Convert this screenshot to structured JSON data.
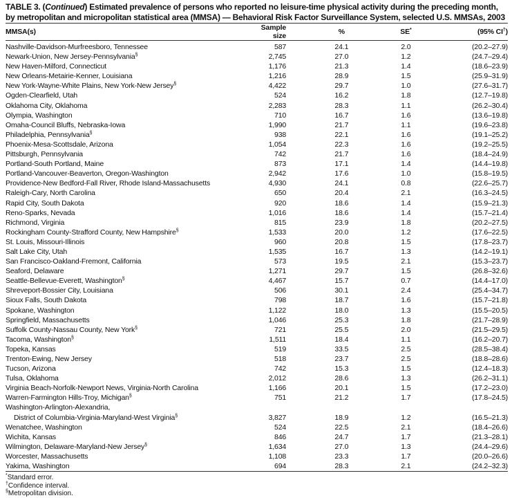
{
  "title": {
    "prefix": "TABLE 3. (",
    "continued": "Continued",
    "text": ") Estimated prevalence of persons who reported no leisure-time physical activity during the preceding month, by metropolitan and micropolitan statistical area (MMSA) — Behavioral Risk Factor Surveillance System, selected U.S. MMSAs, 2003"
  },
  "columns": {
    "mmsa": "MMSA(s)",
    "sample": "Sample size",
    "pct": "%",
    "se": "SE",
    "se_mark": "*",
    "ci": "(95% CI",
    "ci_mark": "†",
    "ci_close": ")"
  },
  "rows": [
    {
      "name": "Nashville-Davidson-Murfreesboro, Tennessee",
      "sample": "587",
      "pct": "24.1",
      "se": "2.0",
      "ci": "(20.2–27.9)"
    },
    {
      "name": "Newark-Union, New Jersey-Pennsylvania",
      "mark": "§",
      "sample": "2,745",
      "pct": "27.0",
      "se": "1.2",
      "ci": "(24.7–29.4)"
    },
    {
      "name": "New Haven-Milford, Connecticut",
      "sample": "1,176",
      "pct": "21.3",
      "se": "1.4",
      "ci": "(18.6–23.9)"
    },
    {
      "name": "New Orleans-Metairie-Kenner, Louisiana",
      "sample": "1,216",
      "pct": "28.9",
      "se": "1.5",
      "ci": "(25.9–31.9)"
    },
    {
      "name": "New York-Wayne-White Plains, New York-New Jersey",
      "mark": "§",
      "sample": "4,422",
      "pct": "29.7",
      "se": "1.0",
      "ci": "(27.6–31.7)"
    },
    {
      "name": "Ogden-Clearfield, Utah",
      "sample": "524",
      "pct": "16.2",
      "se": "1.8",
      "ci": "(12.7–19.8)"
    },
    {
      "name": "Oklahoma City, Oklahoma",
      "sample": "2,283",
      "pct": "28.3",
      "se": "1.1",
      "ci": "(26.2–30.4)"
    },
    {
      "name": "Olympia, Washington",
      "sample": "710",
      "pct": "16.7",
      "se": "1.6",
      "ci": "(13.6–19.8)"
    },
    {
      "name": "Omaha-Council Bluffs, Nebraska-Iowa",
      "sample": "1,990",
      "pct": "21.7",
      "se": "1.1",
      "ci": "(19.6–23.8)"
    },
    {
      "name": "Philadelphia, Pennsylvania",
      "mark": "§",
      "sample": "938",
      "pct": "22.1",
      "se": "1.6",
      "ci": "(19.1–25.2)"
    },
    {
      "name": "Phoenix-Mesa-Scottsdale, Arizona",
      "sample": "1,054",
      "pct": "22.3",
      "se": "1.6",
      "ci": "(19.2–25.5)"
    },
    {
      "name": "Pittsburgh, Pennsylvania",
      "sample": "742",
      "pct": "21.7",
      "se": "1.6",
      "ci": "(18.4–24.9)"
    },
    {
      "name": "Portland-South Portland, Maine",
      "sample": "873",
      "pct": "17.1",
      "se": "1.4",
      "ci": "(14.4–19.8)"
    },
    {
      "name": "Portland-Vancouver-Beaverton, Oregon-Washington",
      "sample": "2,942",
      "pct": "17.6",
      "se": "1.0",
      "ci": "(15.8–19.5)"
    },
    {
      "name": "Providence-New Bedford-Fall River, Rhode Island-Massachusetts",
      "sample": "4,930",
      "pct": "24.1",
      "se": "0.8",
      "ci": "(22.6–25.7)"
    },
    {
      "name": "Raleigh-Cary, North Carolina",
      "sample": "650",
      "pct": "20.4",
      "se": "2.1",
      "ci": "(16.3–24.5)"
    },
    {
      "name": "Rapid City, South Dakota",
      "sample": "920",
      "pct": "18.6",
      "se": "1.4",
      "ci": "(15.9–21.3)"
    },
    {
      "name": "Reno-Sparks, Nevada",
      "sample": "1,016",
      "pct": "18.6",
      "se": "1.4",
      "ci": "(15.7–21.4)"
    },
    {
      "name": "Richmond, Virginia",
      "sample": "815",
      "pct": "23.9",
      "se": "1.8",
      "ci": "(20.2–27.5)"
    },
    {
      "name": "Rockingham County-Strafford County, New Hampshire",
      "mark": "§",
      "sample": "1,533",
      "pct": "20.0",
      "se": "1.2",
      "ci": "(17.6–22.5)"
    },
    {
      "name": "St. Louis, Missouri-Illinois",
      "sample": "960",
      "pct": "20.8",
      "se": "1.5",
      "ci": "(17.8–23.7)"
    },
    {
      "name": "Salt Lake City, Utah",
      "sample": "1,535",
      "pct": "16.7",
      "se": "1.3",
      "ci": "(14.2–19.1)"
    },
    {
      "name": "San Francisco-Oakland-Fremont, California",
      "sample": "573",
      "pct": "19.5",
      "se": "2.1",
      "ci": "(15.3–23.7)"
    },
    {
      "name": "Seaford, Delaware",
      "sample": "1,271",
      "pct": "29.7",
      "se": "1.5",
      "ci": "(26.8–32.6)"
    },
    {
      "name": "Seattle-Bellevue-Everett, Washington",
      "mark": "§",
      "sample": "4,467",
      "pct": "15.7",
      "se": "0.7",
      "ci": "(14.4–17.0)"
    },
    {
      "name": "Shreveport-Bossier City, Louisiana",
      "sample": "506",
      "pct": "30.1",
      "se": "2.4",
      "ci": "(25.4–34.7)"
    },
    {
      "name": "Sioux Falls, South Dakota",
      "sample": "798",
      "pct": "18.7",
      "se": "1.6",
      "ci": "(15.7–21.8)"
    },
    {
      "name": "Spokane, Washington",
      "sample": "1,122",
      "pct": "18.0",
      "se": "1.3",
      "ci": "(15.5–20.5)"
    },
    {
      "name": "Springfield, Massachusetts",
      "sample": "1,046",
      "pct": "25.3",
      "se": "1.8",
      "ci": "(21.7–28.9)"
    },
    {
      "name": "Suffolk County-Nassau County, New York",
      "mark": "§",
      "sample": "721",
      "pct": "25.5",
      "se": "2.0",
      "ci": "(21.5–29.5)"
    },
    {
      "name": "Tacoma, Washington",
      "mark": "§",
      "sample": "1,511",
      "pct": "18.4",
      "se": "1.1",
      "ci": "(16.2–20.7)"
    },
    {
      "name": "Topeka, Kansas",
      "sample": "519",
      "pct": "33.5",
      "se": "2.5",
      "ci": "(28.5–38.4)"
    },
    {
      "name": "Trenton-Ewing, New Jersey",
      "sample": "518",
      "pct": "23.7",
      "se": "2.5",
      "ci": "(18.8–28.6)"
    },
    {
      "name": "Tucson, Arizona",
      "sample": "742",
      "pct": "15.3",
      "se": "1.5",
      "ci": "(12.4–18.3)"
    },
    {
      "name": "Tulsa, Oklahoma",
      "sample": "2,012",
      "pct": "28.6",
      "se": "1.3",
      "ci": "(26.2–31.1)"
    },
    {
      "name": "Virginia Beach-Norfolk-Newport News, Virginia-North Carolina",
      "sample": "1,166",
      "pct": "20.1",
      "se": "1.5",
      "ci": "(17.2–23.0)"
    },
    {
      "name": "Warren-Farmington Hills-Troy, Michigan",
      "mark": "§",
      "sample": "751",
      "pct": "21.2",
      "se": "1.7",
      "ci": "(17.8–24.5)"
    },
    {
      "name_line1": "Washington-Arlington-Alexandria,",
      "name": "District of Columbia-Virginia-Maryland-West Virginia",
      "mark": "§",
      "sample": "3,827",
      "pct": "18.9",
      "se": "1.2",
      "ci": "(16.5–21.3)"
    },
    {
      "name": "Wenatchee, Washington",
      "sample": "524",
      "pct": "22.5",
      "se": "2.1",
      "ci": "(18.4–26.6)"
    },
    {
      "name": "Wichita, Kansas",
      "sample": "846",
      "pct": "24.7",
      "se": "1.7",
      "ci": "(21.3–28.1)"
    },
    {
      "name": "Wilmington, Delaware-Maryland-New Jersey",
      "mark": "§",
      "sample": "1,634",
      "pct": "27.0",
      "se": "1.3",
      "ci": "(24.4–29.6)"
    },
    {
      "name": "Worcester, Massachusetts",
      "sample": "1,108",
      "pct": "23.3",
      "se": "1.7",
      "ci": "(20.0–26.6)"
    },
    {
      "name": "Yakima, Washington",
      "sample": "694",
      "pct": "28.3",
      "se": "2.1",
      "ci": "(24.2–32.3)"
    }
  ],
  "footnotes": [
    {
      "mark": "*",
      "text": "Standard error."
    },
    {
      "mark": "†",
      "text": "Confidence interval."
    },
    {
      "mark": "§",
      "text": "Metropolitan division."
    }
  ]
}
